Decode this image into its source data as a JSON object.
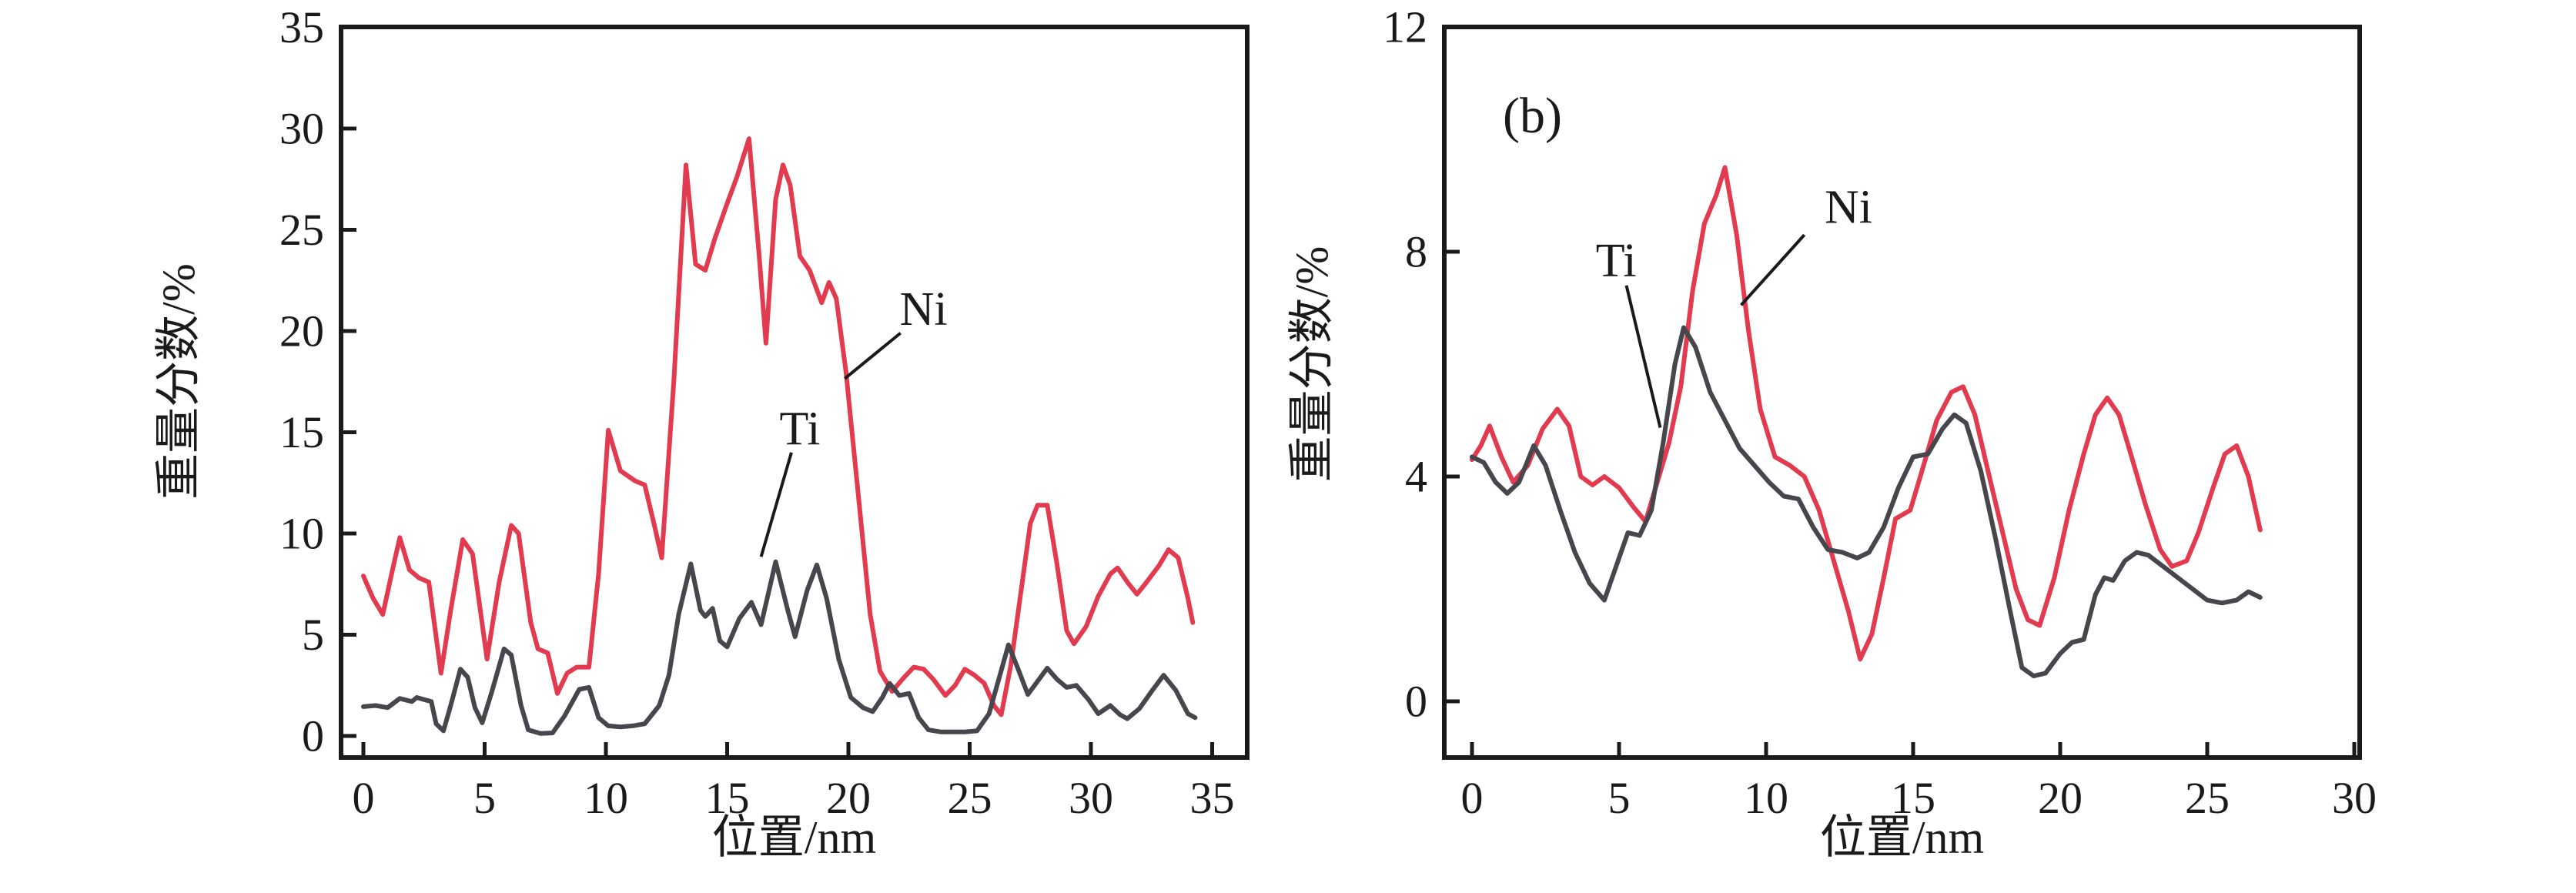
{
  "figure": {
    "background": "#ffffff",
    "axis_color": "#1a1a1a",
    "ni_color": "#e23b50",
    "ti_color": "#46464c"
  },
  "chart_data": [
    {
      "id": "a",
      "type": "line",
      "panel_label": "",
      "xlabel": "位置/nm",
      "ylabel": "重量分数/%",
      "xlim": [
        0,
        35
      ],
      "ylim": [
        0,
        35
      ],
      "x_ticks": [
        0,
        5,
        10,
        15,
        20,
        25,
        30,
        35
      ],
      "y_ticks": [
        0,
        5,
        10,
        15,
        20,
        25,
        30,
        35
      ],
      "grid": false,
      "legend_position": "none",
      "series": [
        {
          "name": "Ni",
          "color": "#e23b50",
          "x": [
            0,
            0.4,
            0.8,
            1.2,
            1.5,
            1.9,
            2.3,
            2.7,
            3.2,
            3.6,
            4.1,
            4.5,
            5.1,
            5.6,
            6.1,
            6.4,
            6.9,
            7.2,
            7.6,
            8.0,
            8.4,
            8.8,
            9.3,
            9.7,
            10.1,
            10.6,
            11.2,
            11.6,
            12.0,
            12.3,
            12.8,
            13.3,
            13.7,
            14.1,
            14.5,
            15.0,
            15.4,
            15.9,
            16.3,
            16.6,
            17.0,
            17.3,
            17.6,
            18.0,
            18.4,
            18.9,
            19.2,
            19.5,
            19.9,
            20.4,
            20.9,
            21.3,
            21.8,
            22.3,
            22.7,
            23.1,
            23.5,
            24.0,
            24.4,
            24.8,
            25.2,
            25.6,
            26.0,
            26.3,
            26.7,
            27.1,
            27.5,
            27.8,
            28.2,
            28.6,
            29.0,
            29.3,
            29.8,
            30.3,
            30.8,
            31.1,
            31.5,
            31.9,
            32.3,
            32.8,
            33.2,
            33.6,
            34.0,
            34.2
          ],
          "y": [
            7.9,
            6.8,
            6.0,
            8.2,
            9.8,
            8.2,
            7.8,
            7.6,
            3.1,
            6.2,
            9.7,
            9.0,
            3.8,
            7.6,
            10.4,
            10.0,
            5.6,
            4.3,
            4.1,
            2.1,
            3.1,
            3.4,
            3.4,
            8.0,
            15.1,
            13.1,
            12.6,
            12.4,
            10.4,
            8.8,
            17.5,
            28.2,
            23.3,
            23.0,
            24.6,
            26.3,
            27.6,
            29.5,
            24.0,
            19.4,
            26.5,
            28.2,
            27.2,
            23.7,
            23.0,
            21.4,
            22.4,
            21.6,
            18.0,
            12.0,
            6.0,
            3.2,
            2.2,
            2.9,
            3.4,
            3.3,
            2.8,
            2.0,
            2.5,
            3.3,
            3.0,
            2.6,
            1.5,
            1.05,
            3.5,
            7.0,
            10.5,
            11.4,
            11.4,
            8.5,
            5.2,
            4.55,
            5.4,
            6.9,
            8.0,
            8.3,
            7.6,
            7.0,
            7.6,
            8.4,
            9.2,
            8.8,
            6.8,
            5.6
          ]
        },
        {
          "name": "Ti",
          "color": "#46464c",
          "x": [
            0,
            0.5,
            1.0,
            1.5,
            2.0,
            2.2,
            2.5,
            2.8,
            3.0,
            3.3,
            3.6,
            4.0,
            4.3,
            4.6,
            4.9,
            5.3,
            5.8,
            6.1,
            6.5,
            6.8,
            7.3,
            7.8,
            8.3,
            8.9,
            9.3,
            9.7,
            10.1,
            10.6,
            11.1,
            11.6,
            12.2,
            12.6,
            13.0,
            13.5,
            13.9,
            14.1,
            14.4,
            14.7,
            15.0,
            15.5,
            16.0,
            16.4,
            17.0,
            17.5,
            17.8,
            18.3,
            18.7,
            19.1,
            19.6,
            20.1,
            20.6,
            21.0,
            21.4,
            21.7,
            22.1,
            22.5,
            22.9,
            23.3,
            23.8,
            24.3,
            24.8,
            25.3,
            25.8,
            26.2,
            26.6,
            27.0,
            27.4,
            27.8,
            28.2,
            28.6,
            29.0,
            29.4,
            29.9,
            30.3,
            30.8,
            31.2,
            31.5,
            32.0,
            32.5,
            33.0,
            33.5,
            34.0,
            34.3
          ],
          "y": [
            1.45,
            1.5,
            1.4,
            1.85,
            1.7,
            1.9,
            1.8,
            1.7,
            0.6,
            0.25,
            1.5,
            3.3,
            2.9,
            1.4,
            0.65,
            2.2,
            4.3,
            4.0,
            1.5,
            0.3,
            0.12,
            0.15,
            1.0,
            2.3,
            2.4,
            0.9,
            0.5,
            0.45,
            0.5,
            0.6,
            1.5,
            3.0,
            6.0,
            8.5,
            6.2,
            5.9,
            6.3,
            4.7,
            4.4,
            5.8,
            6.6,
            5.5,
            8.6,
            6.2,
            4.9,
            7.2,
            8.45,
            6.8,
            3.8,
            1.9,
            1.4,
            1.2,
            1.9,
            2.6,
            2.0,
            2.1,
            0.9,
            0.3,
            0.2,
            0.2,
            0.2,
            0.25,
            1.1,
            2.8,
            4.5,
            3.3,
            2.05,
            2.7,
            3.35,
            2.8,
            2.4,
            2.5,
            1.8,
            1.1,
            1.5,
            1.05,
            0.85,
            1.35,
            2.2,
            3.0,
            2.25,
            1.1,
            0.9
          ]
        }
      ],
      "annotations": [
        {
          "text": "Ni",
          "tx": 23.1,
          "ty": 21.1,
          "line": [
            [
              22.15,
              19.9
            ],
            [
              19.85,
              17.65
            ]
          ]
        },
        {
          "text": "Ti",
          "tx": 18.0,
          "ty": 15.2,
          "line": [
            [
              17.65,
              14.0
            ],
            [
              16.4,
              8.85
            ]
          ]
        }
      ]
    },
    {
      "id": "b",
      "type": "line",
      "panel_label": "(b)",
      "xlabel": "位置/nm",
      "ylabel": "重量分数/%",
      "xlim": [
        0,
        30
      ],
      "ylim": [
        0,
        12
      ],
      "x_ticks": [
        0,
        5,
        10,
        15,
        20,
        25,
        30
      ],
      "y_ticks": [
        0,
        4,
        8,
        12
      ],
      "grid": false,
      "legend_position": "none",
      "series": [
        {
          "name": "Ni",
          "color": "#e23b50",
          "x": [
            0,
            0.3,
            0.6,
            1.0,
            1.4,
            1.9,
            2.4,
            2.9,
            3.3,
            3.7,
            4.1,
            4.5,
            5.0,
            5.5,
            5.9,
            6.3,
            6.7,
            7.1,
            7.5,
            7.9,
            8.3,
            8.6,
            9.0,
            9.4,
            9.8,
            10.3,
            10.8,
            11.3,
            11.8,
            12.3,
            12.8,
            13.2,
            13.6,
            14.0,
            14.4,
            14.9,
            15.3,
            15.8,
            16.3,
            16.7,
            17.1,
            17.5,
            18.0,
            18.5,
            18.9,
            19.3,
            19.8,
            20.3,
            20.8,
            21.2,
            21.6,
            22.0,
            22.4,
            22.9,
            23.4,
            23.8,
            24.3,
            24.7,
            25.2,
            25.6,
            26.0,
            26.4,
            26.8
          ],
          "y": [
            4.3,
            4.55,
            4.9,
            4.35,
            3.9,
            4.2,
            4.85,
            5.2,
            4.9,
            4.0,
            3.85,
            4.0,
            3.8,
            3.45,
            3.2,
            3.9,
            4.6,
            5.6,
            7.3,
            8.5,
            9.0,
            9.5,
            8.3,
            6.6,
            5.2,
            4.35,
            4.2,
            4.0,
            3.4,
            2.5,
            1.6,
            0.75,
            1.2,
            2.2,
            3.25,
            3.4,
            4.1,
            5.0,
            5.5,
            5.6,
            5.1,
            4.2,
            3.1,
            2.0,
            1.45,
            1.35,
            2.2,
            3.4,
            4.4,
            5.1,
            5.4,
            5.1,
            4.4,
            3.5,
            2.7,
            2.4,
            2.5,
            3.0,
            3.8,
            4.4,
            4.55,
            4.0,
            3.05
          ]
        },
        {
          "name": "Ti",
          "color": "#46464c",
          "x": [
            0,
            0.4,
            0.8,
            1.2,
            1.6,
            2.1,
            2.5,
            3.0,
            3.5,
            4.0,
            4.5,
            4.9,
            5.3,
            5.7,
            6.1,
            6.5,
            6.9,
            7.2,
            7.6,
            8.1,
            8.6,
            9.1,
            9.6,
            10.1,
            10.6,
            11.1,
            11.6,
            12.1,
            12.6,
            13.1,
            13.5,
            14.0,
            14.5,
            15.0,
            15.5,
            16.0,
            16.4,
            16.8,
            17.3,
            17.8,
            18.3,
            18.7,
            19.1,
            19.5,
            20.0,
            20.4,
            20.8,
            21.2,
            21.5,
            21.8,
            22.2,
            22.6,
            23.0,
            23.5,
            24.0,
            24.5,
            25.0,
            25.5,
            26.0,
            26.4,
            26.8
          ],
          "y": [
            4.35,
            4.25,
            3.9,
            3.7,
            3.9,
            4.55,
            4.2,
            3.4,
            2.65,
            2.1,
            1.8,
            2.4,
            3.0,
            2.95,
            3.4,
            4.6,
            6.0,
            6.65,
            6.3,
            5.5,
            5.0,
            4.5,
            4.2,
            3.9,
            3.65,
            3.6,
            3.1,
            2.7,
            2.65,
            2.55,
            2.65,
            3.1,
            3.8,
            4.35,
            4.4,
            4.85,
            5.1,
            4.95,
            4.1,
            2.9,
            1.6,
            0.6,
            0.45,
            0.5,
            0.85,
            1.05,
            1.1,
            1.9,
            2.2,
            2.15,
            2.5,
            2.65,
            2.6,
            2.4,
            2.2,
            2.0,
            1.8,
            1.75,
            1.8,
            1.95,
            1.85
          ]
        }
      ],
      "annotations": [
        {
          "text": "Ni",
          "tx": 12.8,
          "ty": 8.8,
          "line": [
            [
              11.3,
              8.3
            ],
            [
              9.15,
              7.05
            ]
          ]
        },
        {
          "text": "Ti",
          "tx": 4.9,
          "ty": 7.85,
          "line": [
            [
              5.25,
              7.4
            ],
            [
              6.4,
              4.87
            ]
          ]
        }
      ]
    }
  ]
}
